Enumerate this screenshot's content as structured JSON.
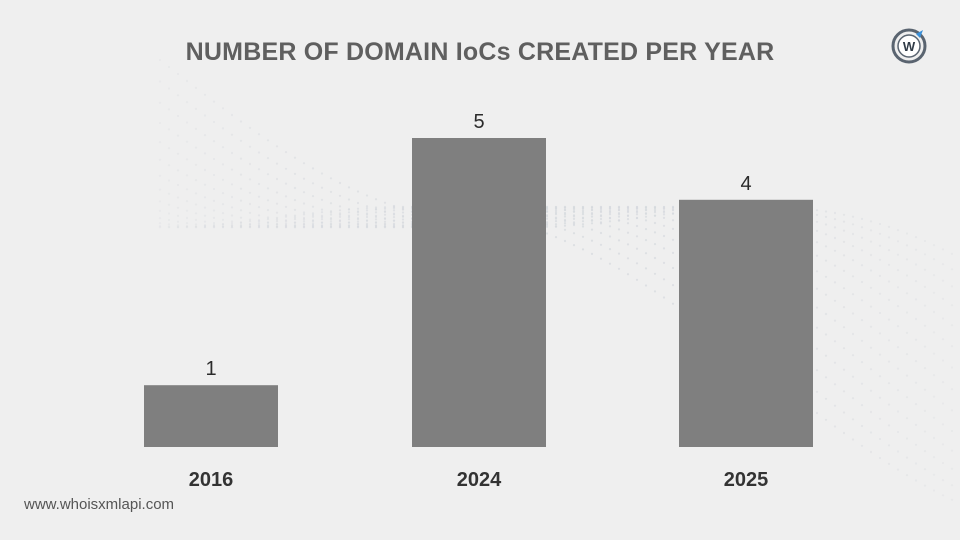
{
  "chart_data": {
    "type": "bar",
    "title": "NUMBER OF DOMAIN IoCs CREATED PER YEAR",
    "categories": [
      "2016",
      "2024",
      "2025"
    ],
    "values": [
      1,
      5,
      4
    ],
    "xlabel": "",
    "ylabel": "",
    "ylim": [
      0,
      5
    ],
    "grid": false,
    "legend": "none",
    "bar_color": "#7f7f7f",
    "label_color": "#2b2b2b",
    "category_color": "#333333"
  },
  "logo": {
    "icon": "whoisxmlapi-logo-icon",
    "letter": "W",
    "ring_color": "#5a6470",
    "accent_color": "#3a8fd8"
  },
  "footer": {
    "text": "www.whoisxmlapi.com"
  }
}
